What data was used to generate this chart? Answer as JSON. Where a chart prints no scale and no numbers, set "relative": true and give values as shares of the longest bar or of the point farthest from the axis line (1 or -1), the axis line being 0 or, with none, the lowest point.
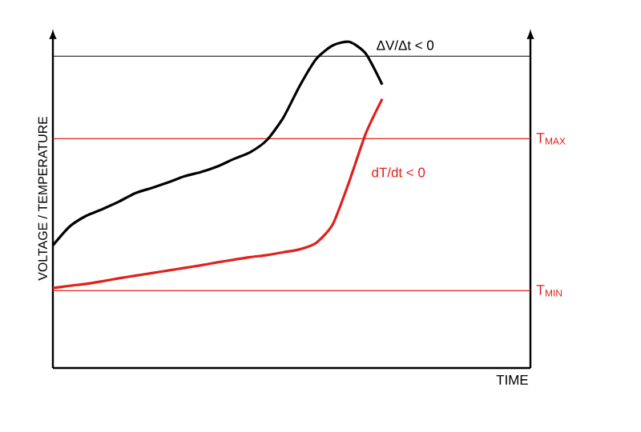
{
  "chart_data": {
    "type": "line",
    "relative": true,
    "ylabel": "VOLTAGE / TEMPERATURE",
    "categories": [
      null,
      null,
      null,
      null,
      null,
      null,
      null,
      null,
      null,
      null,
      null,
      null,
      null,
      null,
      null,
      null,
      null,
      null,
      null,
      null,
      null
    ],
    "series": [
      {
        "color": "#000000",
        "values": [
          0.376,
          0.433,
          0.466,
          0.487,
          0.51,
          0.536,
          0.552,
          0.569,
          0.588,
          0.601,
          0.618,
          0.641,
          0.662,
          0.699,
          0.768,
          0.866,
          0.948,
          0.989,
          1,
          0.964,
          0.869
        ]
      },
      {
        "color": "#e0201c",
        "values": [
          0.245,
          0.252,
          0.258,
          0.266,
          0.275,
          0.283,
          0.291,
          0.299,
          0.307,
          0.315,
          0.324,
          0.332,
          0.34,
          0.346,
          0.355,
          0.364,
          0.384,
          0.441,
          0.572,
          0.719,
          0.825
        ]
      }
    ],
    "ref_lines": [
      {
        "axis": "y",
        "value": 0.956,
        "color": "#000000"
      },
      {
        "axis": "y",
        "value": 0.703,
        "label": "T$_{MAX}$",
        "color": "#e0201c"
      },
      {
        "axis": "y",
        "value": 0.237,
        "label": "T$_{MIN}$",
        "color": "#e0201c"
      }
    ],
    "annotations": [
      "ΔV/Δt < 0",
      "dT/dt < 0",
      "TIME"
    ]
  }
}
